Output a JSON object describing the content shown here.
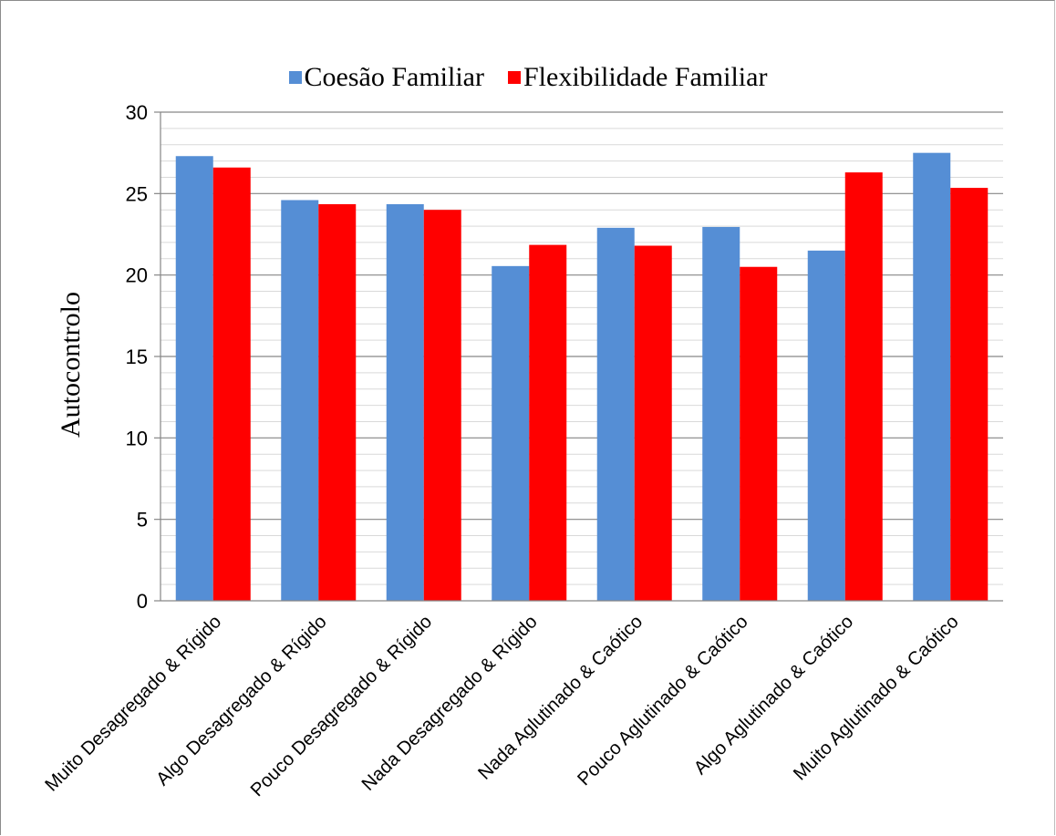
{
  "chart_data": {
    "type": "bar",
    "ylabel": "Autocontrolo",
    "ylim": [
      0,
      30
    ],
    "y_major_ticks": [
      0,
      5,
      10,
      15,
      20,
      25,
      30
    ],
    "minor_grid_step": 1,
    "grid": true,
    "legend_position": "top-center",
    "categories": [
      "Muito Desagregado & Rígido",
      "Algo Desagregado & Rígido",
      "Pouco Desagregado & Rígido",
      "Nada Desagregado & Rígido",
      "Nada Aglutinado & Caótico",
      "Pouco Aglutinado & Caótico",
      "Algo Aglutinado & Caótico",
      "Muito Aglutinado & Caótico"
    ],
    "series": [
      {
        "name": "Coesão Familiar",
        "color": "#558ED5",
        "values": [
          27.3,
          24.6,
          24.35,
          20.55,
          22.9,
          22.95,
          21.5,
          27.5
        ]
      },
      {
        "name": "Flexibilidade Familiar",
        "color": "#FF0000",
        "values": [
          26.6,
          24.35,
          24.0,
          21.85,
          21.8,
          20.5,
          26.3,
          25.35
        ]
      }
    ]
  }
}
